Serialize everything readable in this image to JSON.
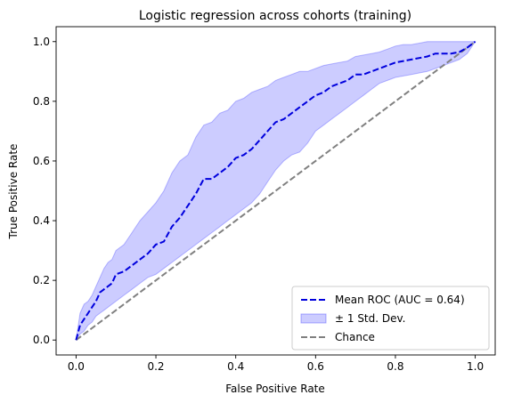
{
  "chart_data": {
    "type": "line",
    "title": "Logistic regression across cohorts (training)",
    "xlabel": "False Positive Rate",
    "ylabel": "True Positive Rate",
    "xlim": [
      -0.05,
      1.05
    ],
    "ylim": [
      -0.05,
      1.05
    ],
    "xticks": [
      "0.0",
      "0.2",
      "0.4",
      "0.6",
      "0.8",
      "1.0"
    ],
    "yticks": [
      "0.0",
      "0.2",
      "0.4",
      "0.6",
      "0.8",
      "1.0"
    ],
    "grid": false,
    "legend_position": "lower-right",
    "series": [
      {
        "name": "Mean ROC (AUC = 0.64)",
        "style": "dashed",
        "color": "#0000dd",
        "x": [
          0.0,
          0.01,
          0.02,
          0.03,
          0.04,
          0.05,
          0.06,
          0.07,
          0.08,
          0.09,
          0.1,
          0.12,
          0.14,
          0.16,
          0.18,
          0.2,
          0.22,
          0.24,
          0.26,
          0.28,
          0.3,
          0.32,
          0.34,
          0.36,
          0.38,
          0.4,
          0.42,
          0.44,
          0.46,
          0.48,
          0.5,
          0.52,
          0.54,
          0.56,
          0.58,
          0.6,
          0.62,
          0.64,
          0.66,
          0.68,
          0.7,
          0.72,
          0.74,
          0.76,
          0.78,
          0.8,
          0.82,
          0.84,
          0.86,
          0.88,
          0.9,
          0.92,
          0.94,
          0.96,
          0.98,
          1.0
        ],
        "y": [
          0.0,
          0.05,
          0.07,
          0.09,
          0.11,
          0.13,
          0.16,
          0.17,
          0.18,
          0.19,
          0.22,
          0.23,
          0.25,
          0.27,
          0.29,
          0.32,
          0.33,
          0.38,
          0.41,
          0.45,
          0.49,
          0.54,
          0.54,
          0.56,
          0.58,
          0.61,
          0.62,
          0.64,
          0.67,
          0.7,
          0.73,
          0.74,
          0.76,
          0.78,
          0.8,
          0.82,
          0.83,
          0.85,
          0.86,
          0.87,
          0.89,
          0.89,
          0.9,
          0.91,
          0.92,
          0.93,
          0.935,
          0.94,
          0.945,
          0.95,
          0.96,
          0.96,
          0.96,
          0.965,
          0.98,
          1.0
        ]
      },
      {
        "name": "± 1 Std. Dev.",
        "style": "band",
        "color": "#0000ff",
        "opacity": 0.2,
        "x": [
          0.0,
          0.01,
          0.02,
          0.03,
          0.04,
          0.05,
          0.06,
          0.07,
          0.08,
          0.09,
          0.1,
          0.12,
          0.14,
          0.16,
          0.18,
          0.2,
          0.22,
          0.24,
          0.26,
          0.28,
          0.3,
          0.32,
          0.34,
          0.36,
          0.38,
          0.4,
          0.42,
          0.44,
          0.46,
          0.48,
          0.5,
          0.52,
          0.54,
          0.56,
          0.58,
          0.6,
          0.62,
          0.64,
          0.66,
          0.68,
          0.7,
          0.72,
          0.74,
          0.76,
          0.78,
          0.8,
          0.82,
          0.84,
          0.86,
          0.88,
          0.9,
          0.92,
          0.94,
          0.96,
          0.98,
          1.0
        ],
        "upper": [
          0.0,
          0.09,
          0.12,
          0.13,
          0.15,
          0.18,
          0.21,
          0.24,
          0.26,
          0.27,
          0.3,
          0.32,
          0.36,
          0.4,
          0.43,
          0.46,
          0.5,
          0.56,
          0.6,
          0.62,
          0.68,
          0.72,
          0.73,
          0.76,
          0.77,
          0.8,
          0.81,
          0.83,
          0.84,
          0.85,
          0.87,
          0.88,
          0.89,
          0.9,
          0.9,
          0.91,
          0.92,
          0.925,
          0.93,
          0.935,
          0.95,
          0.955,
          0.96,
          0.965,
          0.975,
          0.985,
          0.99,
          0.99,
          0.995,
          1.0,
          1.0,
          1.0,
          1.0,
          1.0,
          1.0,
          1.0
        ],
        "lower": [
          0.0,
          0.02,
          0.03,
          0.05,
          0.06,
          0.08,
          0.09,
          0.1,
          0.11,
          0.12,
          0.13,
          0.15,
          0.17,
          0.19,
          0.21,
          0.22,
          0.24,
          0.26,
          0.28,
          0.3,
          0.32,
          0.34,
          0.36,
          0.38,
          0.4,
          0.42,
          0.44,
          0.46,
          0.49,
          0.53,
          0.57,
          0.6,
          0.62,
          0.63,
          0.66,
          0.7,
          0.72,
          0.74,
          0.76,
          0.78,
          0.8,
          0.82,
          0.84,
          0.86,
          0.87,
          0.88,
          0.885,
          0.89,
          0.895,
          0.9,
          0.91,
          0.92,
          0.93,
          0.94,
          0.96,
          1.0
        ]
      },
      {
        "name": "Chance",
        "style": "dashed",
        "color": "#808080",
        "x": [
          0.0,
          1.0
        ],
        "y": [
          0.0,
          1.0
        ]
      }
    ]
  }
}
